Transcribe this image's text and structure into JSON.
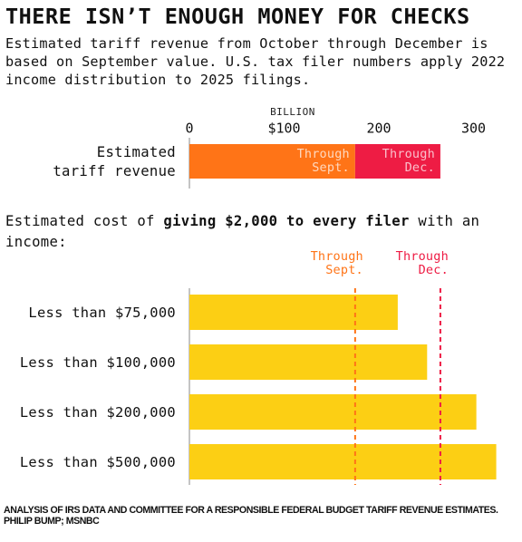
{
  "chart_data": [
    {
      "type": "stacked-bar-horizontal",
      "title": "THERE ISN’T ENOUGH MONEY FOR CHECKS",
      "subtitle": "Estimated tariff revenue from October through December is based on September value. U.S. tax filer numbers apply 2022 income distribution to 2025 filings.",
      "x_label": "BILLION",
      "categories": [
        "Estimated tariff revenue"
      ],
      "series": [
        {
          "name": "Through Sept.",
          "color": "#ff7417",
          "values": [
            175
          ]
        },
        {
          "name": "Through Dec.",
          "color": "#ee1c44",
          "values": [
            90
          ]
        }
      ],
      "xlim": [
        0,
        330
      ],
      "xticks": [
        0,
        {
          "value": 100,
          "label": "$100"
        },
        200,
        300
      ]
    },
    {
      "type": "bar-horizontal",
      "title_parts": [
        "Estimated cost of",
        "giving $2,000 to every filer",
        "with an income:"
      ],
      "categories": [
        "Less than $75,000",
        "Less than $100,000",
        "Less than $200,000",
        "Less than $500,000"
      ],
      "values": [
        220,
        251,
        303,
        324
      ],
      "color": "#fccf14",
      "xlim": [
        0,
        330
      ],
      "source": "ANALYSIS OF IRS DATA AND COMMITTEE FOR A RESPONSIBLE FEDERAL BUDGET TARIFF REVENUE ESTIMATES. PHILIP BUMP; MSNBC"
    }
  ]
}
